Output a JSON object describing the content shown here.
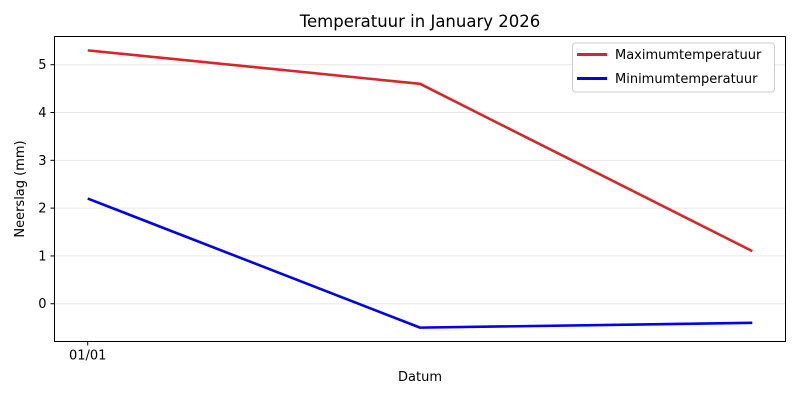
{
  "chart_data": {
    "type": "line",
    "title": "Temperatuur in January 2026",
    "xlabel": "Datum",
    "ylabel": "Neerslag (mm)",
    "x_tick_labels": [
      "01/01"
    ],
    "y_tick_values": [
      0,
      1,
      2,
      3,
      4,
      5
    ],
    "ylim": [
      -0.79,
      5.59
    ],
    "grid": "horizontal",
    "legend_position": "upper right",
    "num_points": 3,
    "series": [
      {
        "name": "Maximumtemperatuur",
        "color": "#d62728",
        "values": [
          5.3,
          4.6,
          1.1
        ]
      },
      {
        "name": "Minimumtemperatuur",
        "color": "#0000ee",
        "values": [
          2.2,
          -0.5,
          -0.4
        ]
      }
    ]
  }
}
